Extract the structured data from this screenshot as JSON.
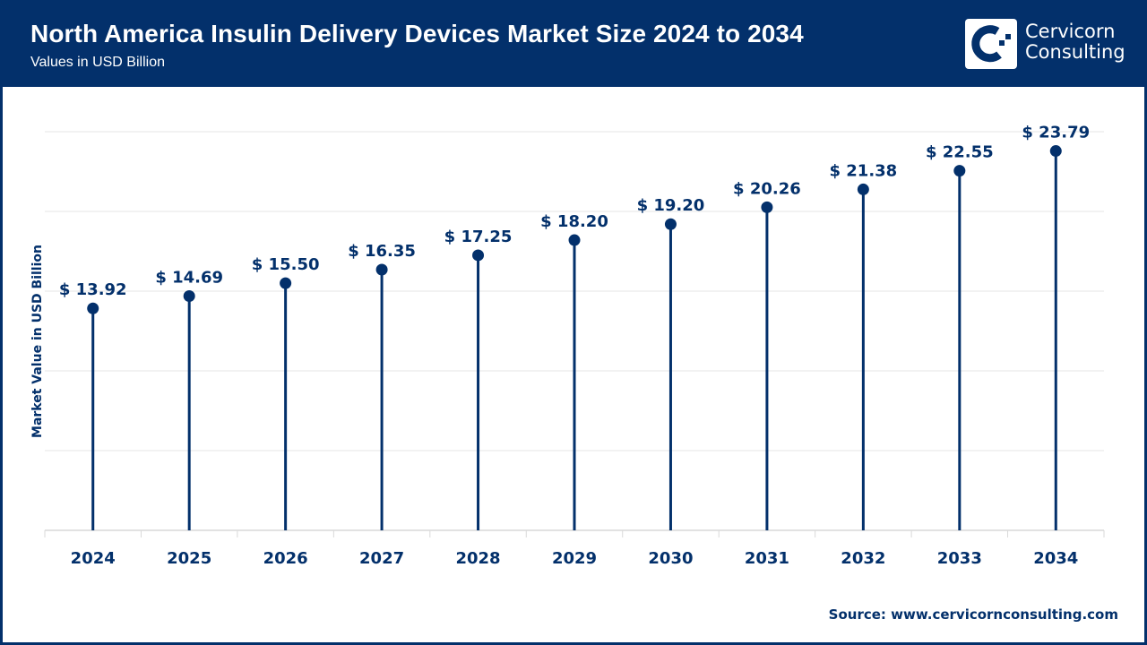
{
  "header": {
    "title": "North America Insulin Delivery Devices Market Size 2024 to 2034",
    "subtitle": "Values in USD Billion",
    "logo": {
      "icon": "cervicorn-logo-icon",
      "line1": "Cervicorn",
      "line2": "Consulting"
    }
  },
  "colors": {
    "brand": "#03306b",
    "gridline": "#e6e6e6",
    "axis": "#d9d9d9",
    "background": "#ffffff"
  },
  "footer": {
    "source": "Source: www.cervicornconsulting.com"
  },
  "chart_data": {
    "type": "lollipop",
    "title": "North America Insulin Delivery Devices Market Size 2024 to 2034",
    "subtitle": "Values in USD Billion",
    "xlabel": "",
    "ylabel": "Market Value in USD Billion",
    "ylim": [
      0,
      25
    ],
    "y_gridlines": [
      5,
      10,
      15,
      20,
      25
    ],
    "y_tick_labels_visible": false,
    "grid": true,
    "legend": "none",
    "categories": [
      "2024",
      "2025",
      "2026",
      "2027",
      "2028",
      "2029",
      "2030",
      "2031",
      "2032",
      "2033",
      "2034"
    ],
    "values": [
      13.92,
      14.69,
      15.5,
      16.35,
      17.25,
      18.2,
      19.2,
      20.26,
      21.38,
      22.55,
      23.79
    ],
    "data_labels": [
      "$ 13.92",
      "$ 14.69",
      "$ 15.50",
      "$ 16.35",
      "$ 17.25",
      "$ 18.20",
      "$ 19.20",
      "$ 20.26",
      "$ 21.38",
      "$ 22.55",
      "$ 23.79"
    ]
  }
}
